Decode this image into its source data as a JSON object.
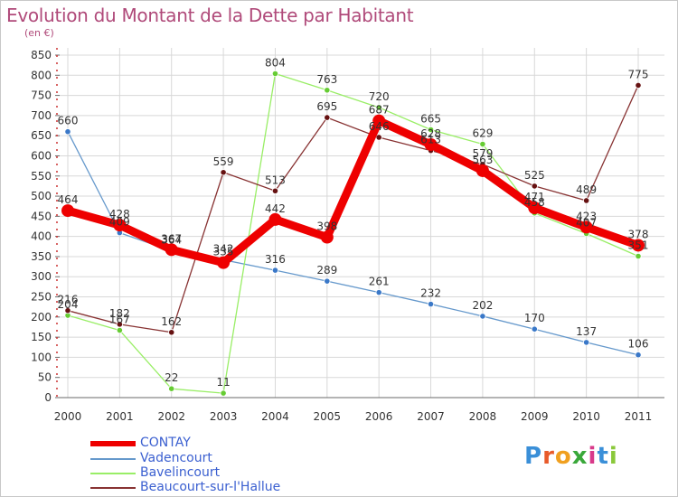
{
  "title": "Evolution du Montant de la Dette par Habitant",
  "unit": "(en €)",
  "logo": "Proxiti",
  "colors": {
    "title": "#b04a7a",
    "legend_text": "#3a5fd0",
    "grid": "#d8d8d8",
    "axis": "#6a6a6a"
  },
  "chart_data": {
    "type": "line",
    "title": "Evolution du Montant de la Dette par Habitant",
    "ylabel": "(en €)",
    "xlabel": "",
    "ylim": [
      0,
      850
    ],
    "ystep": 50,
    "grid": true,
    "legend_placement": "bottom-left",
    "x": [
      "2000",
      "2001",
      "2002",
      "2003",
      "2004",
      "2005",
      "2006",
      "2007",
      "2008",
      "2009",
      "2010",
      "2011"
    ],
    "series": [
      {
        "name": "CONTAY",
        "color": "#ee0000",
        "bold": true,
        "values": [
          464,
          428,
          367,
          335,
          442,
          398,
          687,
          628,
          563,
          471,
          423,
          378
        ],
        "labels": [
          "464",
          "428",
          "367",
          "335",
          "442",
          "398",
          "687",
          "628",
          "563",
          "471",
          "423",
          "378"
        ]
      },
      {
        "name": "Vadencourt",
        "color": "#6699cc",
        "point_color": "#3a78c8",
        "values": [
          660,
          409,
          364,
          342,
          316,
          289,
          261,
          232,
          202,
          170,
          137,
          106
        ],
        "labels": [
          "660",
          "409",
          "364",
          "342",
          "316",
          "289",
          "261",
          "232",
          "202",
          "170",
          "137",
          "106"
        ]
      },
      {
        "name": "Bavelincourt",
        "color": "#99ee66",
        "point_color": "#66cc33",
        "values": [
          204,
          167,
          22,
          11,
          804,
          763,
          720,
          665,
          629,
          458,
          407,
          351
        ],
        "labels": [
          "204",
          "167",
          "22",
          "11",
          "804",
          "763",
          "720",
          "665",
          "629",
          "458",
          "407",
          "351"
        ]
      },
      {
        "name": "Beaucourt-sur-l'Hallue",
        "color": "#883333",
        "point_color": "#661111",
        "values": [
          216,
          182,
          162,
          559,
          513,
          695,
          646,
          613,
          579,
          525,
          489,
          775
        ],
        "labels": [
          "216",
          "182",
          "162",
          "559",
          "513",
          "695",
          "646",
          "613",
          "579",
          "525",
          "489",
          "775"
        ]
      }
    ]
  }
}
